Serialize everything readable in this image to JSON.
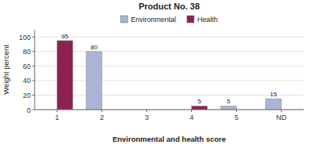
{
  "chart_data": {
    "type": "bar",
    "title": "Product No. 38",
    "xlabel": "Environmental and health score",
    "ylabel": "Weight percent",
    "categories": [
      "1",
      "2",
      "3",
      "4",
      "5",
      "ND"
    ],
    "series": [
      {
        "name": "Environmental",
        "color": "#aab4d4",
        "values": [
          0,
          80,
          0,
          0,
          5,
          15
        ],
        "value_labels": [
          null,
          "80",
          null,
          null,
          "5",
          "15"
        ]
      },
      {
        "name": "Health",
        "color": "#8b2252",
        "values": [
          95,
          0,
          0,
          5,
          0,
          0
        ],
        "value_labels": [
          "95",
          null,
          null,
          "5",
          null,
          null
        ]
      }
    ],
    "ylim": [
      0,
      110
    ],
    "yticks": [
      0,
      20,
      40,
      60,
      80,
      100
    ],
    "grid": true,
    "legend": "top",
    "data_labels": true
  }
}
